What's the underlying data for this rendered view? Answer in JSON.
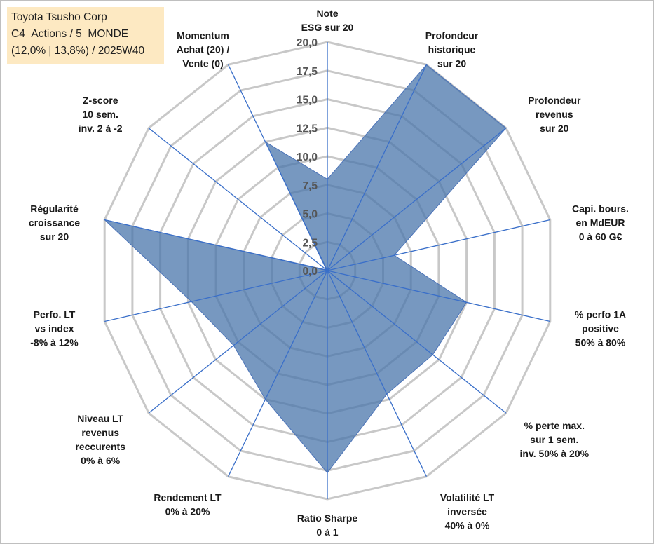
{
  "title_box": {
    "line1": "Toyota Tsusho Corp",
    "line2": "C4_Actions / 5_MONDE",
    "line3": "(12,0% | 13,8%) / 2025W40"
  },
  "chart_data": {
    "type": "radar",
    "range": [
      0,
      20
    ],
    "ticks": [
      "0,0",
      "2,5",
      "5,0",
      "7,5",
      "10,0",
      "12,5",
      "15,0",
      "17,5",
      "20,0"
    ],
    "tick_values": [
      0,
      2.5,
      5,
      7.5,
      10,
      12.5,
      15,
      17.5,
      20
    ],
    "grid": true,
    "axes": [
      {
        "label": [
          "Note",
          "ESG sur 20"
        ],
        "value": 8
      },
      {
        "label": [
          "Profondeur",
          "historique",
          "sur 20"
        ],
        "value": 20
      },
      {
        "label": [
          "Profondeur",
          "revenus",
          "sur 20"
        ],
        "value": 20
      },
      {
        "label": [
          "Capi. bours.",
          "en MdEUR",
          "0 à 60 G€"
        ],
        "value": 6
      },
      {
        "label": [
          "% perfo 1A",
          "positive",
          "50% à 80%"
        ],
        "value": 12.5
      },
      {
        "label": [
          "% perte max.",
          "sur 1 sem.",
          "inv. 50% à 20%"
        ],
        "value": 11.8
      },
      {
        "label": [
          "Volatilité LT",
          "inversée",
          "40% à 0%"
        ],
        "value": 12
      },
      {
        "label": [
          "Ratio Sharpe",
          "0 à 1"
        ],
        "value": 17.7
      },
      {
        "label": [
          "Rendement LT",
          "0% à 20%"
        ],
        "value": 12.5
      },
      {
        "label": [
          "Niveau LT",
          "revenus",
          "reccurents",
          "0% à 6%"
        ],
        "value": 10.5
      },
      {
        "label": [
          "Perfo. LT",
          "vs index",
          "-8% à 12%"
        ],
        "value": 12.2
      },
      {
        "label": [
          "Régularité",
          "croissance",
          "sur 20"
        ],
        "value": 20
      },
      {
        "label": [
          "Z-score",
          "10 sem.",
          "inv. 2 à -2"
        ],
        "value": 0.1
      },
      {
        "label": [
          "Momentum",
          "Achat (20) /",
          "Vente (0)"
        ],
        "value": 12.5
      }
    ],
    "colors": {
      "fill": "#4a76ab",
      "line": "#3a6fc9",
      "grid": "#c8c8c8"
    }
  }
}
